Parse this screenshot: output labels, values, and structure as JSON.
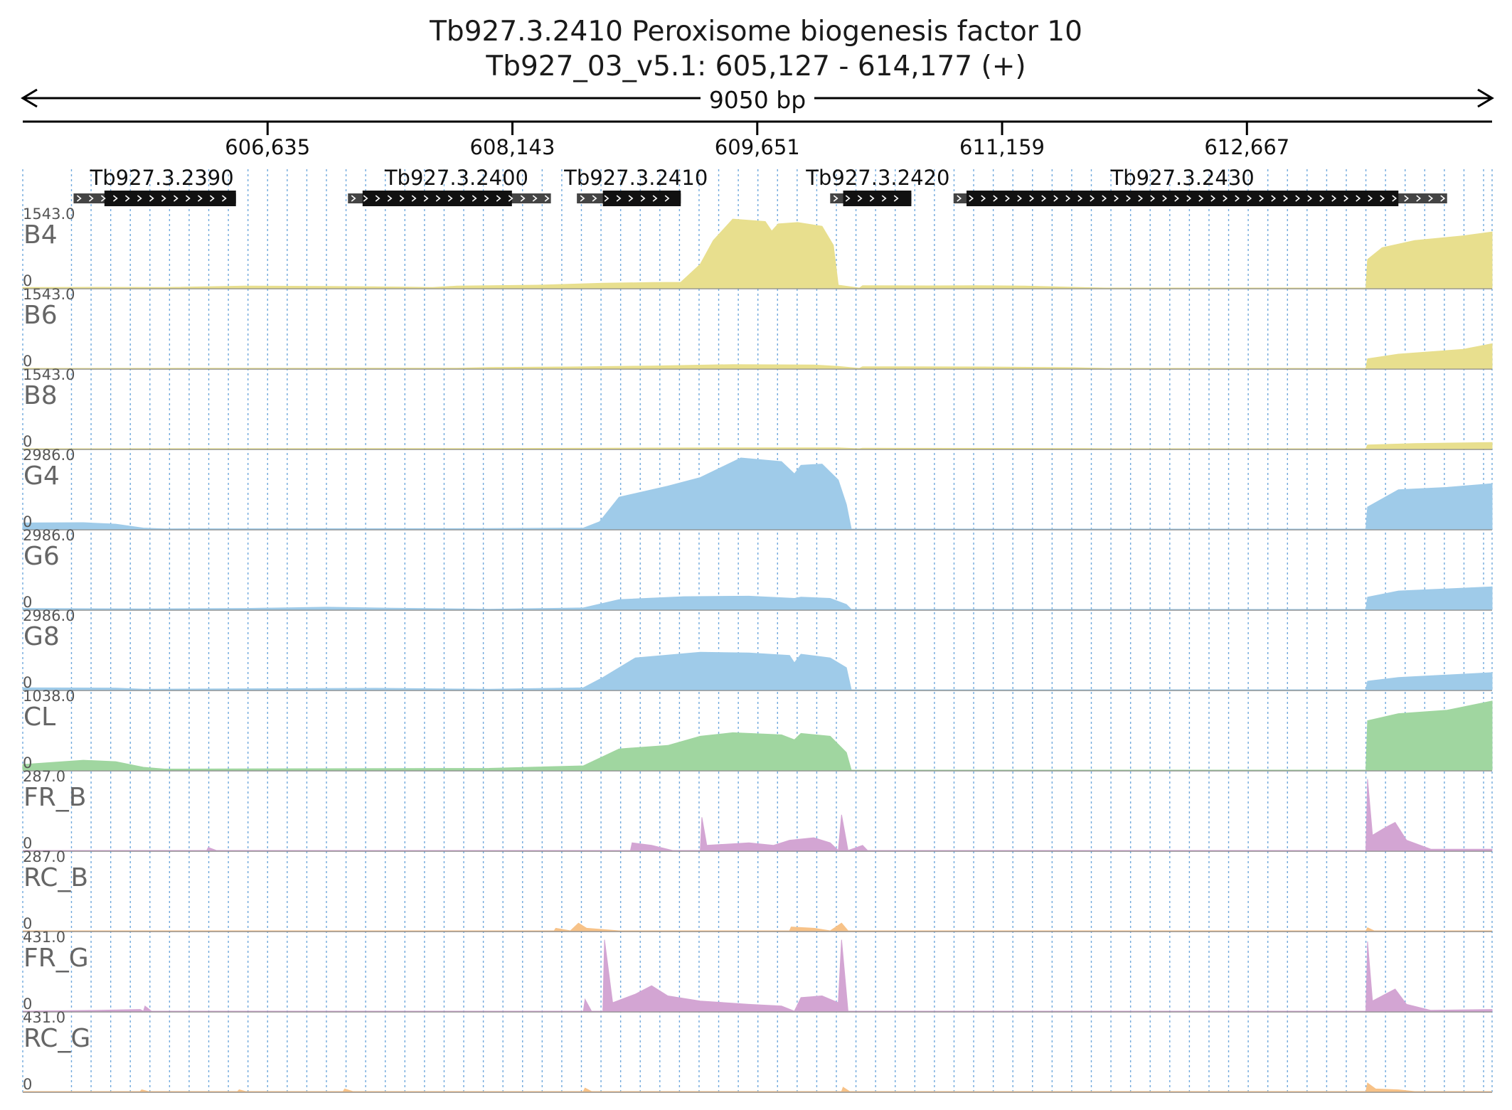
{
  "header": {
    "gene_line": "Tb927.3.2410  Peroxisome biogenesis factor 10",
    "locus_line": "Tb927_03_v5.1: 605,127 - 614,177 (+)",
    "span_label": "9050 bp"
  },
  "chart_data": {
    "type": "area",
    "region": {
      "chrom": "Tb927_03_v5.1",
      "start": 605127,
      "end": 614177,
      "strand": "+"
    },
    "axis": {
      "ticks": [
        606635,
        608143,
        609651,
        611159,
        612667
      ],
      "tick_labels": [
        "606,635",
        "608,143",
        "609,651",
        "611,159",
        "612,667"
      ],
      "grid": true
    },
    "genes": [
      {
        "name": "Tb927.3.2390",
        "start": 605440,
        "end": 606440,
        "cds_start": 605630,
        "cds_end": 606440
      },
      {
        "name": "Tb927.3.2400",
        "start": 607130,
        "end": 608380,
        "cds_start": 607220,
        "cds_end": 608140
      },
      {
        "name": "Tb927.3.2410",
        "start": 608540,
        "end": 609180,
        "cds_start": 608700,
        "cds_end": 609180
      },
      {
        "name": "Tb927.3.2420",
        "start": 610100,
        "end": 610600,
        "cds_start": 610180,
        "cds_end": 610600
      },
      {
        "name": "Tb927.3.2430",
        "start": 610860,
        "end": 613900,
        "cds_start": 610940,
        "cds_end": 613600
      }
    ],
    "tracks": [
      {
        "name": "B4",
        "max_label": "1543.0",
        "min_label": "0",
        "max": 1543,
        "color": "#e8df8e",
        "profile": [
          [
            605127,
            10
          ],
          [
            605600,
            15
          ],
          [
            606000,
            10
          ],
          [
            606500,
            40
          ],
          [
            607000,
            35
          ],
          [
            607500,
            20
          ],
          [
            607650,
            10
          ],
          [
            607800,
            40
          ],
          [
            608300,
            60
          ],
          [
            608700,
            100
          ],
          [
            609000,
            115
          ],
          [
            609180,
            120
          ],
          [
            609300,
            500
          ],
          [
            609380,
            1000
          ],
          [
            609500,
            1450
          ],
          [
            609700,
            1400
          ],
          [
            609740,
            1200
          ],
          [
            609780,
            1350
          ],
          [
            609900,
            1380
          ],
          [
            610050,
            1300
          ],
          [
            610120,
            900
          ],
          [
            610150,
            60
          ],
          [
            610280,
            0
          ],
          [
            610300,
            50
          ],
          [
            610700,
            45
          ],
          [
            611000,
            50
          ],
          [
            611300,
            40
          ],
          [
            611600,
            15
          ],
          [
            611800,
            0
          ],
          [
            613400,
            0
          ],
          [
            613410,
            600
          ],
          [
            613500,
            850
          ],
          [
            613700,
            1000
          ],
          [
            614000,
            1100
          ],
          [
            614177,
            1180
          ]
        ]
      },
      {
        "name": "B6",
        "max_label": "1543.0",
        "min_label": "0",
        "max": 1543,
        "color": "#e8df8e",
        "profile": [
          [
            605127,
            0
          ],
          [
            607800,
            5
          ],
          [
            608000,
            20
          ],
          [
            608500,
            30
          ],
          [
            609000,
            50
          ],
          [
            609500,
            80
          ],
          [
            610000,
            70
          ],
          [
            610150,
            40
          ],
          [
            610280,
            0
          ],
          [
            610300,
            35
          ],
          [
            611000,
            30
          ],
          [
            611600,
            15
          ],
          [
            611800,
            0
          ],
          [
            613400,
            0
          ],
          [
            613410,
            200
          ],
          [
            613600,
            300
          ],
          [
            614000,
            400
          ],
          [
            614177,
            520
          ]
        ]
      },
      {
        "name": "B8",
        "max_label": "1543.0",
        "min_label": "0",
        "max": 1543,
        "color": "#e8df8e",
        "profile": [
          [
            605127,
            0
          ],
          [
            608000,
            5
          ],
          [
            609000,
            15
          ],
          [
            609500,
            20
          ],
          [
            610150,
            20
          ],
          [
            610280,
            0
          ],
          [
            610300,
            10
          ],
          [
            611600,
            5
          ],
          [
            611800,
            0
          ],
          [
            613400,
            0
          ],
          [
            613410,
            80
          ],
          [
            613700,
            110
          ],
          [
            614177,
            130
          ]
        ]
      },
      {
        "name": "G4",
        "max_label": "2986.0",
        "min_label": "0",
        "max": 2986,
        "color": "#9fcbe9",
        "profile": [
          [
            605127,
            250
          ],
          [
            605500,
            260
          ],
          [
            605700,
            200
          ],
          [
            605870,
            40
          ],
          [
            606000,
            10
          ],
          [
            607000,
            15
          ],
          [
            608000,
            20
          ],
          [
            608580,
            40
          ],
          [
            608680,
            300
          ],
          [
            608800,
            1300
          ],
          [
            609100,
            1750
          ],
          [
            609300,
            2100
          ],
          [
            609550,
            2900
          ],
          [
            609800,
            2750
          ],
          [
            609880,
            2250
          ],
          [
            609920,
            2600
          ],
          [
            610050,
            2650
          ],
          [
            610150,
            2000
          ],
          [
            610200,
            1000
          ],
          [
            610230,
            0
          ],
          [
            613400,
            0
          ],
          [
            613410,
            900
          ],
          [
            613600,
            1600
          ],
          [
            613900,
            1700
          ],
          [
            614177,
            1850
          ]
        ]
      },
      {
        "name": "G6",
        "max_label": "2986.0",
        "min_label": "0",
        "max": 2986,
        "color": "#9fcbe9",
        "profile": [
          [
            605127,
            40
          ],
          [
            605870,
            20
          ],
          [
            606500,
            40
          ],
          [
            607000,
            90
          ],
          [
            607400,
            50
          ],
          [
            608000,
            10
          ],
          [
            608580,
            60
          ],
          [
            608800,
            400
          ],
          [
            609200,
            520
          ],
          [
            609600,
            540
          ],
          [
            609880,
            450
          ],
          [
            609920,
            500
          ],
          [
            610100,
            450
          ],
          [
            610200,
            200
          ],
          [
            610230,
            0
          ],
          [
            613400,
            0
          ],
          [
            613410,
            500
          ],
          [
            613600,
            750
          ],
          [
            614177,
            920
          ]
        ]
      },
      {
        "name": "G8",
        "max_label": "2986.0",
        "min_label": "0",
        "max": 2986,
        "color": "#9fcbe9",
        "profile": [
          [
            605127,
            80
          ],
          [
            605700,
            70
          ],
          [
            605870,
            20
          ],
          [
            606500,
            40
          ],
          [
            607300,
            60
          ],
          [
            608000,
            20
          ],
          [
            608580,
            80
          ],
          [
            608700,
            500
          ],
          [
            608900,
            1300
          ],
          [
            609300,
            1530
          ],
          [
            609600,
            1500
          ],
          [
            609850,
            1400
          ],
          [
            609880,
            1100
          ],
          [
            609920,
            1450
          ],
          [
            610100,
            1300
          ],
          [
            610200,
            900
          ],
          [
            610230,
            0
          ],
          [
            613400,
            0
          ],
          [
            613410,
            350
          ],
          [
            613600,
            500
          ],
          [
            614177,
            700
          ]
        ]
      },
      {
        "name": "CL",
        "max_label": "1038.0",
        "min_label": "0",
        "max": 1038,
        "color": "#a0d6a0",
        "profile": [
          [
            605127,
            80
          ],
          [
            605500,
            140
          ],
          [
            605700,
            120
          ],
          [
            605870,
            40
          ],
          [
            606000,
            15
          ],
          [
            607000,
            20
          ],
          [
            608000,
            25
          ],
          [
            608580,
            60
          ],
          [
            608800,
            300
          ],
          [
            609100,
            350
          ],
          [
            609300,
            480
          ],
          [
            609500,
            530
          ],
          [
            609800,
            500
          ],
          [
            609880,
            430
          ],
          [
            609920,
            520
          ],
          [
            610100,
            480
          ],
          [
            610200,
            250
          ],
          [
            610230,
            0
          ],
          [
            613400,
            0
          ],
          [
            613410,
            700
          ],
          [
            613600,
            800
          ],
          [
            613900,
            850
          ],
          [
            614177,
            980
          ]
        ]
      },
      {
        "name": "FR_B",
        "max_label": "287.0",
        "min_label": "0",
        "max": 287,
        "color": "#d3a5d3",
        "profile": [
          [
            605127,
            0
          ],
          [
            606260,
            0
          ],
          [
            606270,
            12
          ],
          [
            606320,
            0
          ],
          [
            608870,
            0
          ],
          [
            608880,
            30
          ],
          [
            609000,
            20
          ],
          [
            609130,
            0
          ],
          [
            609300,
            0
          ],
          [
            609310,
            130
          ],
          [
            609340,
            20
          ],
          [
            609600,
            30
          ],
          [
            609750,
            20
          ],
          [
            609850,
            40
          ],
          [
            610000,
            50
          ],
          [
            610100,
            30
          ],
          [
            610150,
            0
          ],
          [
            610170,
            140
          ],
          [
            610210,
            0
          ],
          [
            610300,
            20
          ],
          [
            610330,
            0
          ],
          [
            613400,
            0
          ],
          [
            613410,
            280
          ],
          [
            613440,
            60
          ],
          [
            613520,
            90
          ],
          [
            613580,
            110
          ],
          [
            613650,
            40
          ],
          [
            613800,
            5
          ],
          [
            614177,
            5
          ]
        ]
      },
      {
        "name": "RC_B",
        "max_label": "287.0",
        "min_label": "0",
        "max": 287,
        "color": "#f7c288",
        "profile": [
          [
            605127,
            0
          ],
          [
            608400,
            0
          ],
          [
            608410,
            10
          ],
          [
            608500,
            0
          ],
          [
            608550,
            30
          ],
          [
            608600,
            10
          ],
          [
            608800,
            0
          ],
          [
            609850,
            0
          ],
          [
            609860,
            15
          ],
          [
            610000,
            10
          ],
          [
            610100,
            0
          ],
          [
            610170,
            30
          ],
          [
            610210,
            0
          ],
          [
            613400,
            0
          ],
          [
            613410,
            12
          ],
          [
            613450,
            0
          ],
          [
            614177,
            0
          ]
        ]
      },
      {
        "name": "FR_G",
        "max_label": "431.0",
        "min_label": "0",
        "max": 431,
        "color": "#d3a5d3",
        "profile": [
          [
            605127,
            0
          ],
          [
            605600,
            5
          ],
          [
            605850,
            10
          ],
          [
            605870,
            0
          ],
          [
            605880,
            30
          ],
          [
            605920,
            0
          ],
          [
            608580,
            0
          ],
          [
            608590,
            70
          ],
          [
            608630,
            0
          ],
          [
            608700,
            0
          ],
          [
            608710,
            420
          ],
          [
            608760,
            50
          ],
          [
            608900,
            100
          ],
          [
            609000,
            150
          ],
          [
            609100,
            90
          ],
          [
            609300,
            60
          ],
          [
            609600,
            40
          ],
          [
            609800,
            30
          ],
          [
            609880,
            0
          ],
          [
            609920,
            80
          ],
          [
            610050,
            90
          ],
          [
            610150,
            50
          ],
          [
            610170,
            420
          ],
          [
            610210,
            0
          ],
          [
            613400,
            0
          ],
          [
            613410,
            410
          ],
          [
            613440,
            60
          ],
          [
            613520,
            100
          ],
          [
            613580,
            130
          ],
          [
            613650,
            40
          ],
          [
            613800,
            5
          ],
          [
            614177,
            10
          ]
        ]
      },
      {
        "name": "RC_G",
        "max_label": "431.0",
        "min_label": "0",
        "max": 431,
        "color": "#f7c288",
        "profile": [
          [
            605127,
            0
          ],
          [
            605850,
            0
          ],
          [
            605860,
            10
          ],
          [
            605900,
            0
          ],
          [
            606450,
            0
          ],
          [
            606460,
            10
          ],
          [
            606500,
            0
          ],
          [
            607100,
            0
          ],
          [
            607110,
            15
          ],
          [
            607160,
            0
          ],
          [
            608580,
            0
          ],
          [
            608590,
            20
          ],
          [
            608630,
            0
          ],
          [
            610170,
            0
          ],
          [
            610180,
            25
          ],
          [
            610220,
            0
          ],
          [
            613400,
            0
          ],
          [
            613410,
            50
          ],
          [
            613460,
            15
          ],
          [
            613600,
            10
          ],
          [
            613700,
            0
          ],
          [
            614177,
            0
          ]
        ]
      }
    ]
  }
}
